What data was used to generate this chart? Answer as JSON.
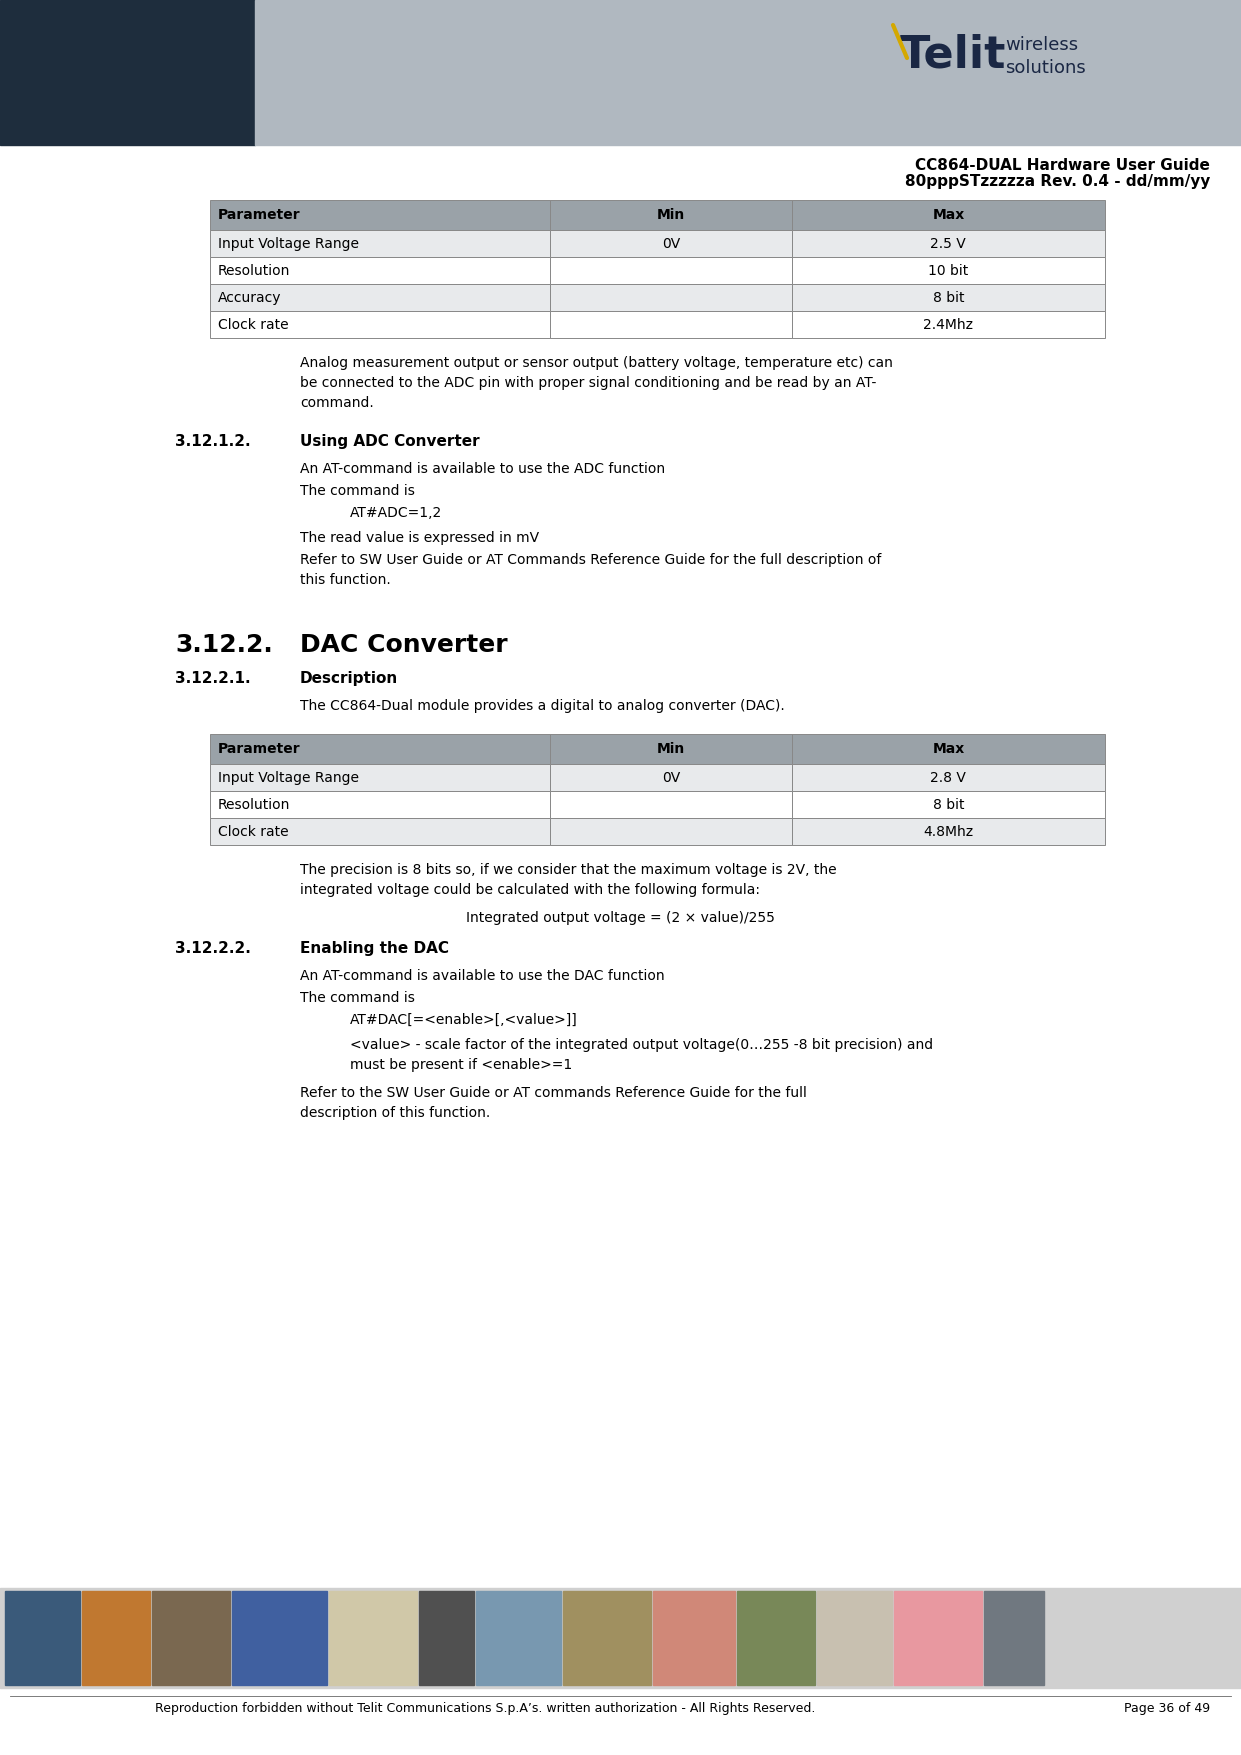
{
  "page_title_line1": "CC864-DUAL Hardware User Guide",
  "page_title_line2": "80pppSTzzzzza Rev. 0.4 - dd/mm/yy",
  "header_bg_left_color": "#1e2d3d",
  "header_bg_right_color": "#b0b8c0",
  "footer_text": "Reproduction forbidden without Telit Communications S.p.A’s. written authorization - All Rights Reserved.",
  "footer_page": "Page 36 of 49",
  "table1_headers": [
    "Parameter",
    "Min",
    "Max"
  ],
  "table1_rows": [
    [
      "Input Voltage Range",
      "0V",
      "2.5 V"
    ],
    [
      "Resolution",
      "",
      "10 bit"
    ],
    [
      "Accuracy",
      "",
      "8 bit"
    ],
    [
      "Clock rate",
      "",
      "2.4Mhz"
    ]
  ],
  "table1_header_bg": "#9aa2a8",
  "table1_row_bg_light": "#e8eaec",
  "table1_row_bg_white": "#ffffff",
  "para1_lines": [
    "Analog measurement output or sensor output (battery voltage, temperature etc) can",
    "be connected to the ADC pin with proper signal conditioning and be read by an AT-",
    "command."
  ],
  "section_312_1_2_num": "3.12.1.2.",
  "section_312_1_2_title": "Using ADC Converter",
  "text_adc1": "An AT-command is available to use the ADC function",
  "text_adc2": "The command is",
  "text_adc3": "AT#ADC=1,2",
  "text_adc4": "The read value is expressed in mV",
  "text_adc5_lines": [
    "Refer to SW User Guide or AT Commands Reference Guide for the full description of",
    "this function."
  ],
  "section_3122_num": "3.12.2.",
  "section_3122_title": "DAC Converter",
  "section_31221_num": "3.12.2.1.",
  "section_31221_title": "Description",
  "text_dac_desc": "The CC864-Dual module provides a digital to analog converter (DAC).",
  "table2_headers": [
    "Parameter",
    "Min",
    "Max"
  ],
  "table2_rows": [
    [
      "Input Voltage Range",
      "0V",
      "2.8 V"
    ],
    [
      "Resolution",
      "",
      "8 bit"
    ],
    [
      "Clock rate",
      "",
      "4.8Mhz"
    ]
  ],
  "table2_header_bg": "#9aa2a8",
  "table2_row_bg_light": "#e8eaec",
  "table2_row_bg_white": "#ffffff",
  "text_prec1_lines": [
    "The precision is 8 bits so, if we consider that the maximum voltage is 2V, the",
    "integrated voltage could be calculated with the following formula:"
  ],
  "text_formula": "Integrated output voltage = (2 × value)/255",
  "section_31222_num": "3.12.2.2.",
  "section_31222_title": "Enabling the DAC",
  "text_dac2_1": "An AT-command is available to use the DAC function",
  "text_dac2_2": "The command is",
  "text_dac2_3": "AT#DAC[=<enable>[,<value>]]",
  "text_dac2_4_lines": [
    "<value> - scale factor of the integrated output voltage(0…255 -8 bit precision) and",
    "must be present if <enable>=1"
  ],
  "text_dac2_5_lines": [
    "Refer to the SW User Guide or AT commands Reference Guide for the full",
    "description of this function."
  ]
}
